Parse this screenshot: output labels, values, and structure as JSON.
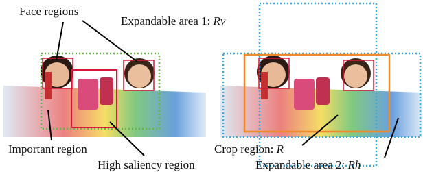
{
  "labels": {
    "face": "Face regions",
    "expand1": {
      "text": "Expandable area 1:",
      "symbol": "Rv"
    },
    "important": "Important region",
    "saliency": "High saliency region",
    "crop": {
      "text": "Crop region:",
      "symbol": "R"
    },
    "expand2": {
      "text": "Expandable area 2:",
      "symbol": "Rh"
    }
  }
}
